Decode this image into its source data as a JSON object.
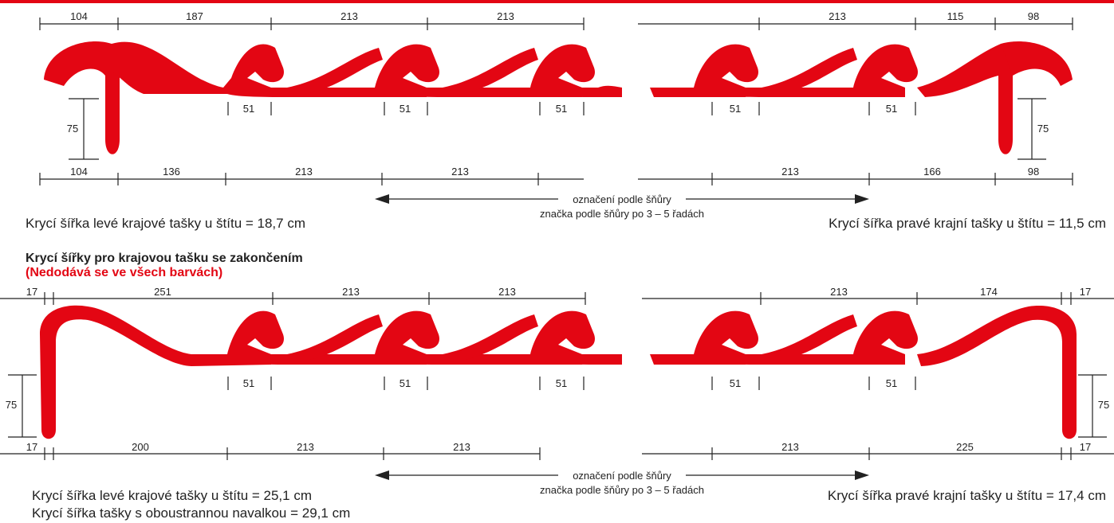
{
  "colors": {
    "tile": "#e30613",
    "line": "#222222",
    "accent_text": "#e30613",
    "top_rule": "#e30613"
  },
  "panel_top": {
    "left": {
      "top_dims": [
        "104",
        "187",
        "213",
        "213"
      ],
      "bottom_dims": [
        "104",
        "136",
        "213",
        "213"
      ],
      "overlap_dims": [
        "51",
        "51",
        "51"
      ],
      "height_dim": "75"
    },
    "right": {
      "top_dims": [
        "213",
        "115",
        "98"
      ],
      "bottom_dims": [
        "213",
        "166",
        "98"
      ],
      "overlap_dims": [
        "51",
        "51"
      ],
      "height_dim": "75"
    },
    "arrow_label_1": "označení podle šňůry",
    "arrow_label_2": "značka podle šňůry po 3 – 5 řadách",
    "caption_left": "Krycí šířka levé krajové tašky u štítu = 18,7 cm",
    "caption_right": "Krycí šířka pravé krajní tašky u štítu = 11,5 cm"
  },
  "section_title": "Krycí šířky pro krajovou tašku se zakončením",
  "section_note": "(Nedodává se ve všech barvách)",
  "panel_bottom": {
    "left": {
      "top_dims": [
        "17",
        "251",
        "213",
        "213"
      ],
      "bottom_dims": [
        "17",
        "200",
        "213",
        "213"
      ],
      "overlap_dims": [
        "51",
        "51",
        "51"
      ],
      "height_dim": "75"
    },
    "right": {
      "top_dims": [
        "213",
        "174",
        "17"
      ],
      "bottom_dims": [
        "213",
        "225",
        "17"
      ],
      "overlap_dims": [
        "51",
        "51"
      ],
      "height_dim": "75"
    },
    "arrow_label_1": "označení podle šňůry",
    "arrow_label_2": "značka podle šňůry po 3 – 5 řadách",
    "caption_left": "Krycí šířka levé krajové tašky u štítu = 25,1 cm",
    "caption_left_2": "Krycí šířka tašky s oboustrannou navalkou = 29,1 cm",
    "caption_right": "Krycí šířka pravé krajní tašky u štítu = 17,4 cm"
  }
}
